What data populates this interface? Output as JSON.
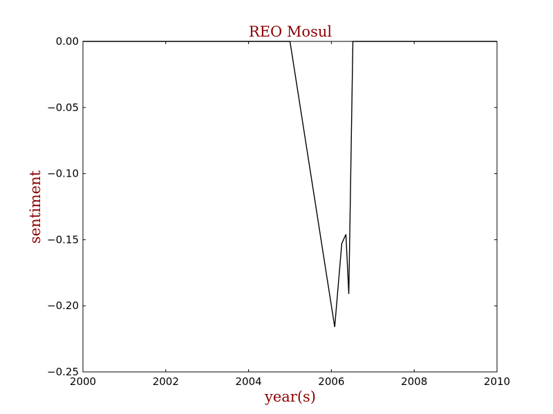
{
  "chart_data": {
    "type": "line",
    "title": "REO Mosul",
    "xlabel": "year(s)",
    "ylabel": "sentiment",
    "xlim": [
      2000,
      2010
    ],
    "ylim": [
      -0.25,
      0.0
    ],
    "x_ticks": [
      "2000",
      "2002",
      "2004",
      "2006",
      "2008",
      "2010"
    ],
    "y_ticks": [
      "0.00",
      "−0.05",
      "−0.10",
      "−0.15",
      "−0.20",
      "−0.25"
    ],
    "grid": false,
    "legend": "none",
    "colors": {
      "label": "#8b0000",
      "line": "#000000"
    },
    "series": [
      {
        "x": [
          2000.0,
          2005.0,
          2006.08,
          2006.25,
          2006.35,
          2006.42,
          2006.52,
          2010.0
        ],
        "y": [
          0.0,
          0.0,
          -0.216,
          -0.153,
          -0.146,
          -0.191,
          0.0,
          0.0
        ]
      }
    ]
  }
}
